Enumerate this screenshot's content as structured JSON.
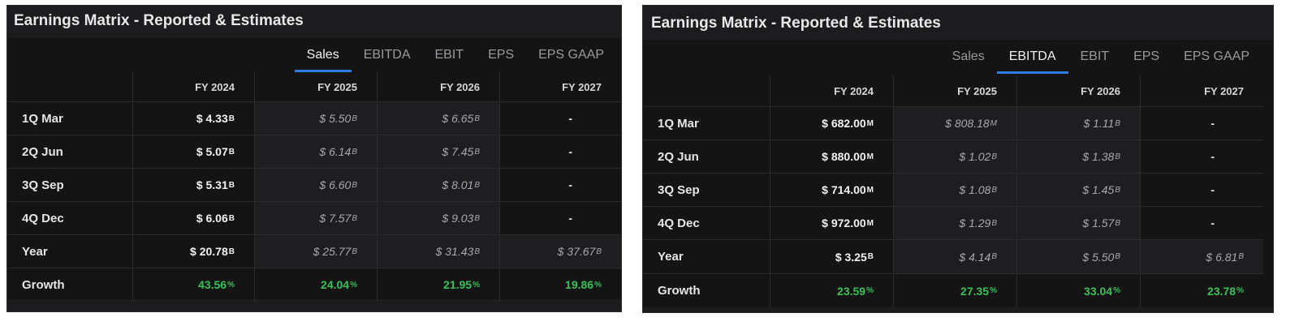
{
  "panels": [
    {
      "title": "Earnings Matrix - Reported & Estimates",
      "tabs": [
        "Sales",
        "EBITDA",
        "EBIT",
        "EPS",
        "EPS GAAP"
      ],
      "active_tab": 0,
      "columns": [
        "FY 2024",
        "FY 2025",
        "FY 2026",
        "FY 2027"
      ],
      "rows": [
        {
          "label": "1Q Mar",
          "cells": [
            {
              "kind": "rep",
              "text": "$ 4.33",
              "unit": "B"
            },
            {
              "kind": "est",
              "text": "$ 5.50",
              "unit": "B"
            },
            {
              "kind": "est",
              "text": "$ 6.65",
              "unit": "B"
            },
            {
              "kind": "dash",
              "text": "-",
              "unit": ""
            }
          ]
        },
        {
          "label": "2Q Jun",
          "cells": [
            {
              "kind": "rep",
              "text": "$ 5.07",
              "unit": "B"
            },
            {
              "kind": "est",
              "text": "$ 6.14",
              "unit": "B"
            },
            {
              "kind": "est",
              "text": "$ 7.45",
              "unit": "B"
            },
            {
              "kind": "dash",
              "text": "-",
              "unit": ""
            }
          ]
        },
        {
          "label": "3Q Sep",
          "cells": [
            {
              "kind": "rep",
              "text": "$ 5.31",
              "unit": "B"
            },
            {
              "kind": "est",
              "text": "$ 6.60",
              "unit": "B"
            },
            {
              "kind": "est",
              "text": "$ 8.01",
              "unit": "B"
            },
            {
              "kind": "dash",
              "text": "-",
              "unit": ""
            }
          ]
        },
        {
          "label": "4Q Dec",
          "cells": [
            {
              "kind": "rep",
              "text": "$ 6.06",
              "unit": "B"
            },
            {
              "kind": "est",
              "text": "$ 7.57",
              "unit": "B"
            },
            {
              "kind": "est",
              "text": "$ 9.03",
              "unit": "B"
            },
            {
              "kind": "dash",
              "text": "-",
              "unit": ""
            }
          ]
        },
        {
          "label": "Year",
          "cells": [
            {
              "kind": "rep",
              "text": "$ 20.78",
              "unit": "B"
            },
            {
              "kind": "est",
              "text": "$ 25.77",
              "unit": "B"
            },
            {
              "kind": "est",
              "text": "$ 31.43",
              "unit": "B"
            },
            {
              "kind": "est",
              "text": "$ 37.67",
              "unit": "B"
            }
          ]
        },
        {
          "label": "Growth",
          "cells": [
            {
              "kind": "grow",
              "text": "43.56",
              "unit": "%"
            },
            {
              "kind": "grow",
              "text": "24.04",
              "unit": "%"
            },
            {
              "kind": "grow",
              "text": "21.95",
              "unit": "%"
            },
            {
              "kind": "grow",
              "text": "19.86",
              "unit": "%"
            }
          ]
        }
      ]
    },
    {
      "title": "Earnings Matrix - Reported & Estimates",
      "tabs": [
        "Sales",
        "EBITDA",
        "EBIT",
        "EPS",
        "EPS GAAP"
      ],
      "active_tab": 1,
      "columns": [
        "FY 2024",
        "FY 2025",
        "FY 2026",
        "FY 2027"
      ],
      "rows": [
        {
          "label": "1Q Mar",
          "cells": [
            {
              "kind": "rep",
              "text": "$ 682.00",
              "unit": "M"
            },
            {
              "kind": "est",
              "text": "$ 808.18",
              "unit": "M"
            },
            {
              "kind": "est",
              "text": "$ 1.11",
              "unit": "B"
            },
            {
              "kind": "dash",
              "text": "-",
              "unit": ""
            }
          ]
        },
        {
          "label": "2Q Jun",
          "cells": [
            {
              "kind": "rep",
              "text": "$ 880.00",
              "unit": "M"
            },
            {
              "kind": "est",
              "text": "$ 1.02",
              "unit": "B"
            },
            {
              "kind": "est",
              "text": "$ 1.38",
              "unit": "B"
            },
            {
              "kind": "dash",
              "text": "-",
              "unit": ""
            }
          ]
        },
        {
          "label": "3Q Sep",
          "cells": [
            {
              "kind": "rep",
              "text": "$ 714.00",
              "unit": "M"
            },
            {
              "kind": "est",
              "text": "$ 1.08",
              "unit": "B"
            },
            {
              "kind": "est",
              "text": "$ 1.45",
              "unit": "B"
            },
            {
              "kind": "dash",
              "text": "-",
              "unit": ""
            }
          ]
        },
        {
          "label": "4Q Dec",
          "cells": [
            {
              "kind": "rep",
              "text": "$ 972.00",
              "unit": "M"
            },
            {
              "kind": "est",
              "text": "$ 1.29",
              "unit": "B"
            },
            {
              "kind": "est",
              "text": "$ 1.57",
              "unit": "B"
            },
            {
              "kind": "dash",
              "text": "-",
              "unit": ""
            }
          ]
        },
        {
          "label": "Year",
          "cells": [
            {
              "kind": "rep",
              "text": "$ 3.25",
              "unit": "B"
            },
            {
              "kind": "est",
              "text": "$ 4.14",
              "unit": "B"
            },
            {
              "kind": "est",
              "text": "$ 5.50",
              "unit": "B"
            },
            {
              "kind": "est",
              "text": "$ 6.81",
              "unit": "B"
            }
          ]
        },
        {
          "label": "Growth",
          "cells": [
            {
              "kind": "grow",
              "text": "23.59",
              "unit": "%"
            },
            {
              "kind": "grow",
              "text": "27.35",
              "unit": "%"
            },
            {
              "kind": "grow",
              "text": "33.04",
              "unit": "%"
            },
            {
              "kind": "grow",
              "text": "23.78",
              "unit": "%"
            }
          ]
        }
      ]
    }
  ]
}
